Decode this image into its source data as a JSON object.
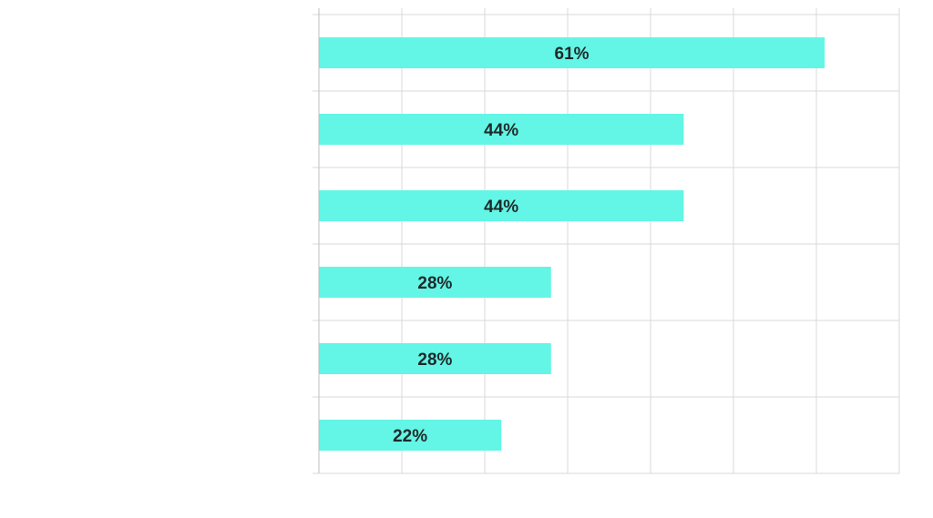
{
  "chart_data": {
    "type": "bar",
    "orientation": "horizontal",
    "categories": [
      "",
      "",
      "",
      "",
      "",
      ""
    ],
    "values": [
      61,
      44,
      44,
      28,
      28,
      22
    ],
    "data_labels": [
      "61%",
      "44%",
      "44%",
      "28%",
      "28%",
      "22%"
    ],
    "value_unit": "%",
    "xlim": [
      0,
      70
    ],
    "x_gridline_step": 10,
    "grid": true,
    "legend": "none",
    "title": "",
    "xlabel": "",
    "ylabel": "",
    "colors": {
      "bar": "#63f5e5",
      "grid": "#d9d9d9",
      "axis": "#bfbfbf",
      "label_text": "#1f2a2a"
    }
  }
}
